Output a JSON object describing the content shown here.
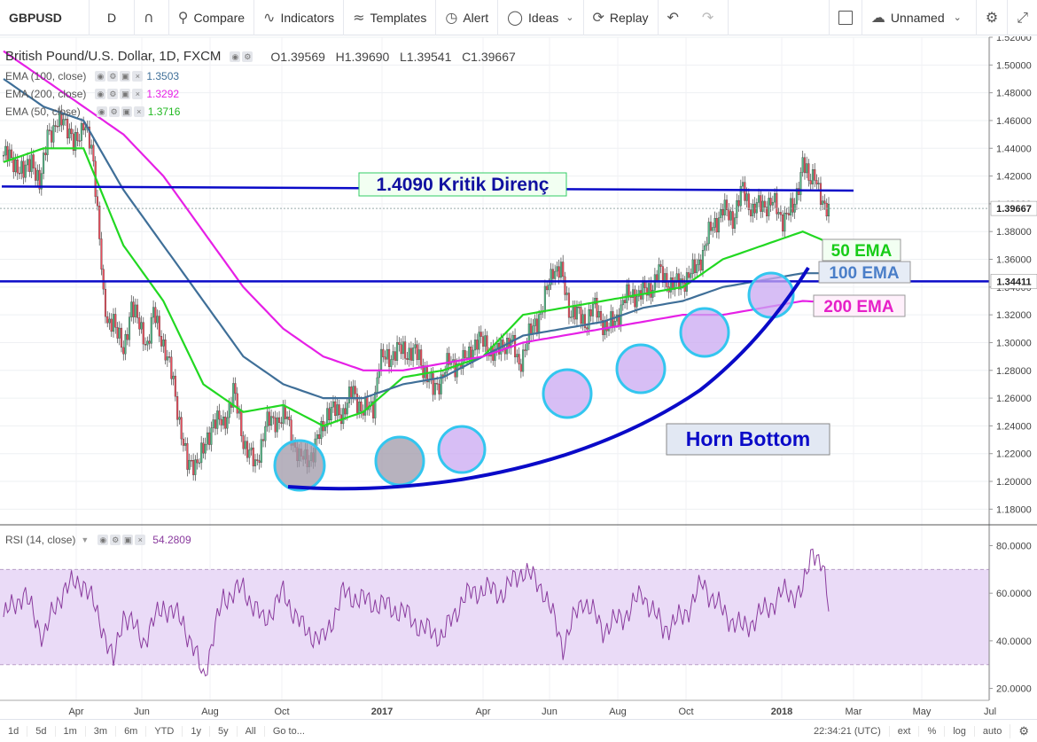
{
  "toolbar": {
    "symbol": "GBPUSD",
    "interval": "D",
    "compare": "Compare",
    "indicators": "Indicators",
    "templates": "Templates",
    "alert": "Alert",
    "ideas": "Ideas",
    "replay": "Replay",
    "layout_name": "Unnamed",
    "icons": [
      "candles-icon",
      "compare-icon",
      "indicators-icon",
      "templates-icon",
      "alert-icon",
      "ideas-icon",
      "replay-icon",
      "undo-icon",
      "redo-icon",
      "layout-icon",
      "cloud-icon",
      "settings-icon",
      "fullscreen-icon"
    ]
  },
  "legend": {
    "title": "British Pound/U.S. Dollar, 1D, FXCM",
    "open": "O1.39569",
    "high": "H1.39690",
    "low": "L1.39541",
    "close": "C1.39667",
    "ema100_label": "EMA (100, close)",
    "ema100_value": "1.3503",
    "ema200_label": "EMA (200, close)",
    "ema200_value": "1.3292",
    "ema50_label": "EMA (50, close)",
    "ema50_value": "1.3716",
    "rsi_label": "RSI (14, close)",
    "rsi_value": "54.2809"
  },
  "annotations": {
    "resistance": "1.4090 Kritik Direnç",
    "ema50": "50 EMA",
    "ema100": "100 EMA",
    "ema200": "200 EMA",
    "pattern": "Horn Bottom"
  },
  "price_badges": {
    "last": "1.39667",
    "hline": "1.34411"
  },
  "colors": {
    "up": "#53b987",
    "down": "#eb4d5c",
    "ema50": "#22d822",
    "ema100": "#3f6f98",
    "ema200": "#e620e6",
    "resistance": "#0a0ac8",
    "circle_fill": "#c9a8f2",
    "circle_stroke": "#33c6ef",
    "rsi": "#8a3b9e",
    "rsi_band": "#eadbf7"
  },
  "bottom_bar": {
    "ranges": [
      "1d",
      "5d",
      "1m",
      "3m",
      "6m",
      "YTD",
      "1y",
      "5y",
      "All"
    ],
    "goto": "Go to...",
    "time": "22:34:21 (UTC)",
    "options": [
      "ext",
      "%",
      "log",
      "auto"
    ]
  },
  "chart_data": [
    {
      "type": "candlestick",
      "title": "British Pound/U.S. Dollar, 1D, FXCM",
      "ylim": [
        1.17,
        1.52
      ],
      "y_ticks": [
        "1.52000",
        "1.50000",
        "1.48000",
        "1.46000",
        "1.44000",
        "1.42000",
        "1.40000",
        "1.38000",
        "1.36000",
        "1.34000",
        "1.32000",
        "1.30000",
        "1.28000",
        "1.26000",
        "1.24000",
        "1.22000",
        "1.20000",
        "1.18000"
      ],
      "x_ticks": [
        "Apr",
        "Jun",
        "Aug",
        "Oct",
        "2017",
        "Apr",
        "Jun",
        "Aug",
        "Oct",
        "2018",
        "Mar",
        "May",
        "Jul"
      ],
      "close_path": {
        "x": [
          0,
          6,
          10,
          14,
          18,
          20,
          22,
          25,
          30,
          35,
          40,
          45,
          48,
          50,
          52,
          55,
          60,
          64,
          68,
          72,
          75,
          80,
          85,
          92,
          100,
          105,
          110,
          115,
          120,
          126,
          131,
          136,
          142,
          148,
          155,
          162,
          170,
          175,
          180,
          185,
          188,
          192,
          200,
          208,
          215,
          223,
          230,
          236,
          241,
          246,
          250,
          254,
          258,
          262,
          266,
          270,
          275,
          279,
          283,
          287,
          291,
          295,
          298,
          302,
          306,
          310,
          315,
          320,
          324,
          328,
          332,
          336,
          340,
          345,
          350,
          355,
          360,
          365,
          370,
          375,
          380,
          385,
          390,
          395,
          400,
          403,
          406,
          408,
          410,
          413
        ],
        "y": [
          1.435,
          1.43,
          1.42,
          1.435,
          1.41,
          1.43,
          1.455,
          1.45,
          1.465,
          1.44,
          1.46,
          1.43,
          1.38,
          1.33,
          1.31,
          1.32,
          1.29,
          1.33,
          1.31,
          1.3,
          1.32,
          1.3,
          1.27,
          1.21,
          1.22,
          1.245,
          1.24,
          1.265,
          1.23,
          1.21,
          1.24,
          1.245,
          1.245,
          1.215,
          1.22,
          1.25,
          1.25,
          1.265,
          1.25,
          1.255,
          1.285,
          1.29,
          1.295,
          1.29,
          1.265,
          1.285,
          1.285,
          1.3,
          1.3,
          1.29,
          1.3,
          1.3,
          1.285,
          1.3,
          1.315,
          1.325,
          1.355,
          1.35,
          1.325,
          1.32,
          1.315,
          1.325,
          1.32,
          1.31,
          1.315,
          1.33,
          1.335,
          1.335,
          1.34,
          1.35,
          1.345,
          1.34,
          1.345,
          1.35,
          1.365,
          1.385,
          1.395,
          1.39,
          1.41,
          1.395,
          1.4,
          1.4,
          1.39,
          1.395,
          1.43,
          1.415,
          1.425,
          1.41,
          1.395,
          1.397
        ]
      },
      "ema_series": [
        {
          "name": "50 EMA",
          "x": [
            0,
            20,
            40,
            60,
            80,
            100,
            120,
            140,
            160,
            180,
            200,
            220,
            240,
            260,
            280,
            300,
            320,
            340,
            360,
            380,
            400,
            413
          ],
          "y": [
            1.43,
            1.44,
            1.44,
            1.37,
            1.33,
            1.27,
            1.25,
            1.255,
            1.24,
            1.25,
            1.275,
            1.28,
            1.29,
            1.32,
            1.325,
            1.33,
            1.335,
            1.34,
            1.36,
            1.37,
            1.38,
            1.372
          ]
        },
        {
          "name": "100 EMA",
          "x": [
            0,
            20,
            40,
            60,
            80,
            100,
            120,
            140,
            160,
            180,
            200,
            220,
            240,
            260,
            280,
            300,
            320,
            340,
            360,
            380,
            400,
            413
          ],
          "y": [
            1.49,
            1.47,
            1.46,
            1.41,
            1.37,
            1.33,
            1.29,
            1.27,
            1.26,
            1.26,
            1.27,
            1.275,
            1.29,
            1.305,
            1.31,
            1.315,
            1.325,
            1.33,
            1.34,
            1.345,
            1.35,
            1.35
          ]
        },
        {
          "name": "200 EMA",
          "x": [
            0,
            20,
            40,
            60,
            80,
            100,
            120,
            140,
            160,
            180,
            200,
            220,
            240,
            260,
            280,
            300,
            320,
            340,
            360,
            380,
            400,
            413
          ],
          "y": [
            1.51,
            1.49,
            1.47,
            1.45,
            1.42,
            1.38,
            1.34,
            1.31,
            1.29,
            1.28,
            1.28,
            1.285,
            1.29,
            1.3,
            1.305,
            1.31,
            1.315,
            1.32,
            1.32,
            1.325,
            1.33,
            1.329
          ]
        }
      ],
      "horizontal_lines": [
        1.409,
        1.34411
      ]
    },
    {
      "type": "line",
      "title": "RSI (14, close)",
      "ylim": [
        15,
        88
      ],
      "y_ticks": [
        "80.0000",
        "60.0000",
        "40.0000",
        "20.0000"
      ],
      "bands": [
        30,
        70
      ],
      "series": [
        {
          "x": [
            0,
            10,
            20,
            30,
            40,
            50,
            55,
            60,
            70,
            80,
            90,
            100,
            110,
            120,
            130,
            140,
            150,
            160,
            170,
            180,
            190,
            200,
            210,
            220,
            230,
            240,
            250,
            260,
            270,
            280,
            290,
            300,
            310,
            320,
            330,
            340,
            350,
            360,
            370,
            380,
            390,
            400,
            405,
            410,
            413
          ],
          "values": [
            50,
            60,
            42,
            62,
            65,
            45,
            30,
            52,
            40,
            55,
            48,
            25,
            58,
            62,
            48,
            60,
            45,
            40,
            60,
            57,
            55,
            52,
            45,
            42,
            58,
            62,
            60,
            70,
            62,
            38,
            58,
            45,
            50,
            60,
            45,
            50,
            64,
            52,
            45,
            52,
            60,
            60,
            80,
            70,
            54
          ]
        }
      ]
    }
  ]
}
